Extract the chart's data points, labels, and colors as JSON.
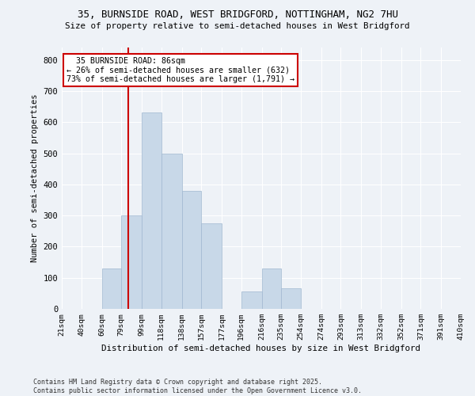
{
  "title1": "35, BURNSIDE ROAD, WEST BRIDGFORD, NOTTINGHAM, NG2 7HU",
  "title2": "Size of property relative to semi-detached houses in West Bridgford",
  "xlabel": "Distribution of semi-detached houses by size in West Bridgford",
  "ylabel": "Number of semi-detached properties",
  "bin_edges": [
    21,
    40,
    60,
    79,
    99,
    118,
    138,
    157,
    177,
    196,
    216,
    235,
    254,
    274,
    293,
    313,
    332,
    352,
    371,
    391,
    410
  ],
  "bar_heights": [
    0,
    0,
    130,
    300,
    630,
    500,
    380,
    275,
    0,
    55,
    130,
    65,
    0,
    0,
    0,
    0,
    0,
    0,
    0,
    0
  ],
  "bar_color": "#c8d8e8",
  "bar_edge_color": "#a0b8d0",
  "property_size": 86,
  "property_label": "35 BURNSIDE ROAD: 86sqm",
  "pct_smaller": 26,
  "pct_larger": 73,
  "n_smaller": 632,
  "n_larger": 1791,
  "vline_color": "#cc0000",
  "annotation_box_color": "#cc0000",
  "background_color": "#eef2f7",
  "grid_color": "#ffffff",
  "ylim": [
    0,
    840
  ],
  "xlim": [
    21,
    410
  ],
  "yticks": [
    0,
    100,
    200,
    300,
    400,
    500,
    600,
    700,
    800
  ],
  "footnote1": "Contains HM Land Registry data © Crown copyright and database right 2025.",
  "footnote2": "Contains public sector information licensed under the Open Government Licence v3.0."
}
